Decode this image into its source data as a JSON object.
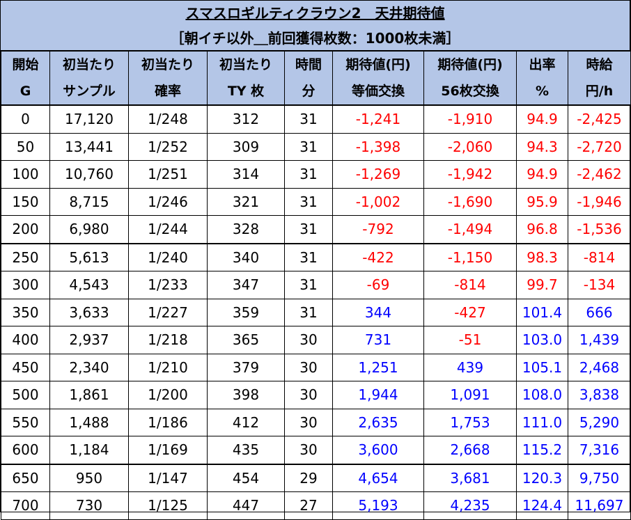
{
  "title": "スマスロギルティクラウン2　天井期待値",
  "subtitle": "［朝イチ以外＿前回獲得枚数：1000枚未満］",
  "headers": [
    [
      "開始",
      "G"
    ],
    [
      "初当たり",
      "サンプル"
    ],
    [
      "初当たり",
      "確率"
    ],
    [
      "初当たり",
      "TY 枚"
    ],
    [
      "時間",
      "分"
    ],
    [
      "期待値(円)",
      "等価交換"
    ],
    [
      "期待値(円)",
      "56枚交換"
    ],
    [
      "出率",
      "%"
    ],
    [
      "時給",
      "円/h"
    ]
  ],
  "rows": [
    [
      "0",
      "17,120",
      "1/248",
      "312",
      "31",
      "-1,241",
      "-1,910",
      "94.9",
      "-2,425"
    ],
    [
      "50",
      "13,441",
      "1/252",
      "309",
      "31",
      "-1,398",
      "-2,060",
      "94.3",
      "-2,720"
    ],
    [
      "100",
      "10,760",
      "1/251",
      "314",
      "31",
      "-1,269",
      "-1,942",
      "94.9",
      "-2,462"
    ],
    [
      "150",
      "8,715",
      "1/246",
      "321",
      "31",
      "-1,002",
      "-1,690",
      "95.9",
      "-1,946"
    ],
    [
      "200",
      "6,980",
      "1/244",
      "328",
      "31",
      "-792",
      "-1,494",
      "96.8",
      "-1,536"
    ],
    [
      "250",
      "5,613",
      "1/240",
      "340",
      "31",
      "-422",
      "-1,150",
      "98.3",
      "-814"
    ],
    [
      "300",
      "4,543",
      "1/233",
      "347",
      "31",
      "-69",
      "-814",
      "99.7",
      "-134"
    ],
    [
      "350",
      "3,633",
      "1/227",
      "359",
      "31",
      "344",
      "-427",
      "101.4",
      "666"
    ],
    [
      "400",
      "2,937",
      "1/218",
      "365",
      "30",
      "731",
      "-51",
      "103.0",
      "1,439"
    ],
    [
      "450",
      "2,340",
      "1/210",
      "379",
      "30",
      "1,251",
      "439",
      "105.1",
      "2,468"
    ],
    [
      "500",
      "1,861",
      "1/200",
      "398",
      "30",
      "1,944",
      "1,091",
      "108.0",
      "3,838"
    ],
    [
      "550",
      "1,488",
      "1/186",
      "412",
      "30",
      "2,635",
      "1,753",
      "111.0",
      "5,290"
    ],
    [
      "600",
      "1,184",
      "1/169",
      "435",
      "30",
      "3,600",
      "2,668",
      "115.2",
      "7,316"
    ],
    [
      "650",
      "950",
      "1/147",
      "454",
      "29",
      "4,654",
      "3,681",
      "120.3",
      "9,750"
    ],
    [
      "700",
      "730",
      "1/125",
      "447",
      "27",
      "5,193",
      "4,235",
      "124.4",
      "11,697"
    ]
  ],
  "thick_after_rows": [
    4,
    12
  ],
  "colors": {
    "header_bg": "#b4c6e7",
    "negative": "#ff0000",
    "positive": "#0000ff"
  }
}
